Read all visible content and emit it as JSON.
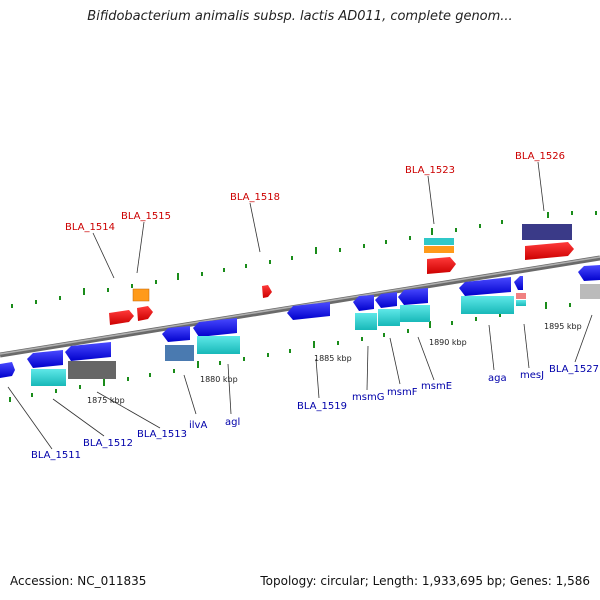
{
  "title": "Bifidobacterium animalis subsp. lactis AD011, complete genom...",
  "footer": {
    "accession": "Accession: NC_011835",
    "summary": "Topology: circular; Length: 1,933,695 bp; Genes: 1,586"
  },
  "scale_labels": [
    "1875 kbp",
    "1880 kbp",
    "1885 kbp",
    "1890 kbp",
    "1895 kbp"
  ],
  "gene_labels_top": [
    "BLA_1514",
    "BLA_1515",
    "BLA_1518",
    "BLA_1523",
    "BLA_1526"
  ],
  "gene_labels_bottom": [
    "BLA_1511",
    "BLA_1512",
    "BLA_1513",
    "ilvA",
    "agl",
    "BLA_1519",
    "msmG",
    "msmF",
    "msmE",
    "aga",
    "mesJ",
    "BLA_1527"
  ],
  "colors": {
    "backbone": "#888888",
    "forward_gene": "#e00000",
    "reverse_gene": "#1a1aff",
    "cds": "#2ad0d0",
    "label_top": "#cc0000",
    "label_bottom": "#0000aa",
    "tick": "#1a8c1a"
  }
}
